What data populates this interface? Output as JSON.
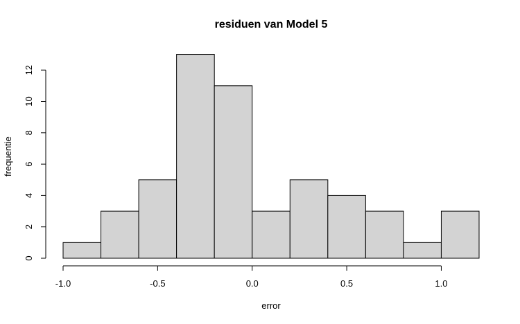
{
  "chart_data": {
    "type": "bar",
    "title": "residuen van Model 5",
    "xlabel": "error",
    "ylabel": "frequentie",
    "bins": [
      {
        "x0": -1.0,
        "x1": -0.8,
        "count": 1
      },
      {
        "x0": -0.8,
        "x1": -0.6,
        "count": 3
      },
      {
        "x0": -0.6,
        "x1": -0.4,
        "count": 5
      },
      {
        "x0": -0.4,
        "x1": -0.2,
        "count": 13
      },
      {
        "x0": -0.2,
        "x1": 0.0,
        "count": 11
      },
      {
        "x0": 0.0,
        "x1": 0.2,
        "count": 3
      },
      {
        "x0": 0.2,
        "x1": 0.4,
        "count": 5
      },
      {
        "x0": 0.4,
        "x1": 0.6,
        "count": 4
      },
      {
        "x0": 0.6,
        "x1": 0.8,
        "count": 3
      },
      {
        "x0": 0.8,
        "x1": 1.0,
        "count": 1
      },
      {
        "x0": 1.0,
        "x1": 1.2,
        "count": 3
      }
    ],
    "xticks": [
      {
        "value": -1.0,
        "label": "-1.0"
      },
      {
        "value": -0.5,
        "label": "-0.5"
      },
      {
        "value": 0.0,
        "label": "0.0"
      },
      {
        "value": 0.5,
        "label": "0.5"
      },
      {
        "value": 1.0,
        "label": "1.0"
      }
    ],
    "yticks": [
      {
        "value": 0,
        "label": "0"
      },
      {
        "value": 2,
        "label": "2"
      },
      {
        "value": 4,
        "label": "4"
      },
      {
        "value": 6,
        "label": "6"
      },
      {
        "value": 8,
        "label": "8"
      },
      {
        "value": 10,
        "label": "10"
      },
      {
        "value": 12,
        "label": "12"
      }
    ],
    "xlim": [
      -1.0,
      1.2
    ],
    "ylim": [
      0,
      13
    ],
    "bar_color": "#d3d3d3",
    "edge_color": "#000000",
    "grid": false
  }
}
